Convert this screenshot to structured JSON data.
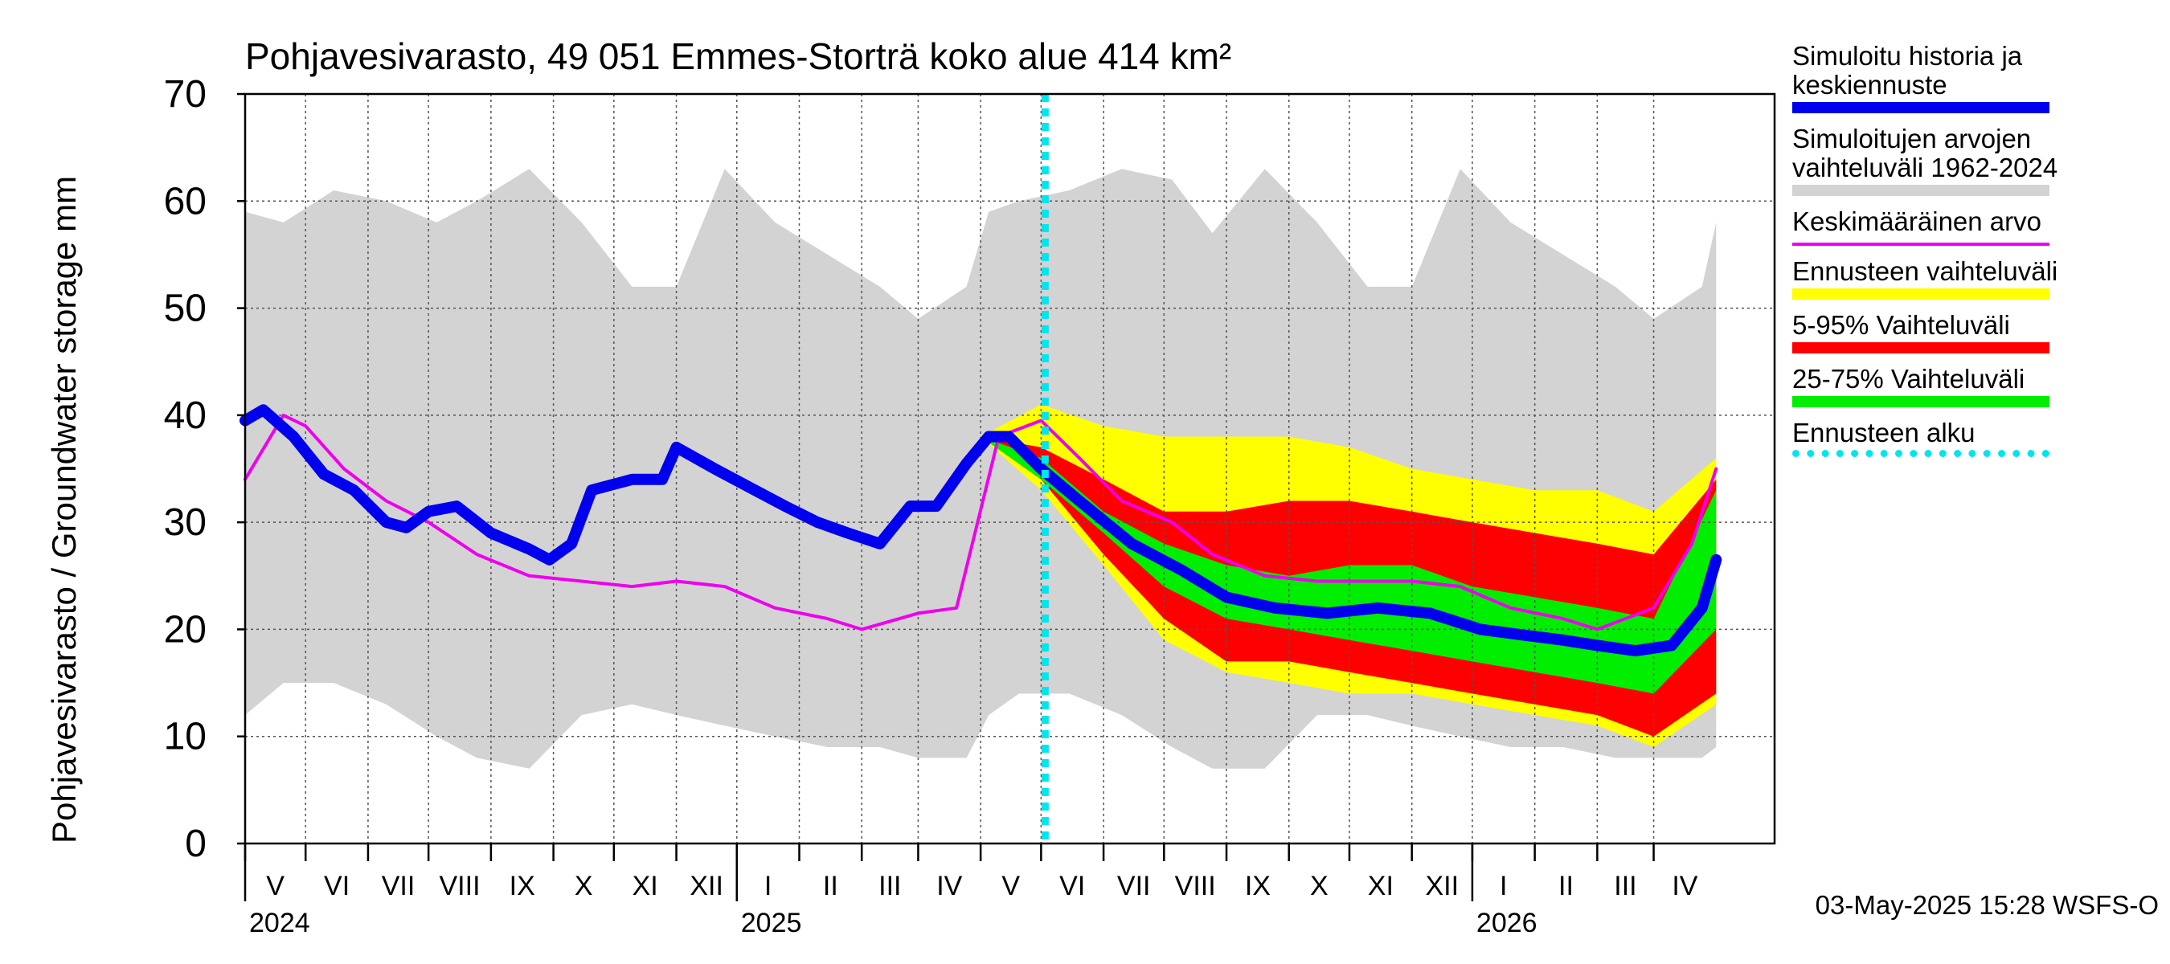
{
  "title": "Pohjavesivarasto, 49 051 Emmes-Storträ koko alue 414 km²",
  "ylabel": "Pohjavesivarasto / Groundwater storage   mm",
  "footer": "03-May-2025 15:28 WSFS-O",
  "legend": [
    {
      "label": "Simuloitu historia ja keskiennuste",
      "color": "#0000ee",
      "style": "solid"
    },
    {
      "label": "Simuloitujen arvojen vaihteluväli 1962-2024",
      "color": "#d3d3d3",
      "style": "solid"
    },
    {
      "label": "Keskimääräinen arvo",
      "color": "#ee00ee",
      "style": "line"
    },
    {
      "label": "Ennusteen vaihteluväli",
      "color": "#ffff00",
      "style": "solid"
    },
    {
      "label": "5-95% Vaihteluväli",
      "color": "#ff0000",
      "style": "solid"
    },
    {
      "label": "25-75% Vaihteluväli",
      "color": "#00ee00",
      "style": "solid"
    },
    {
      "label": "Ennusteen alku",
      "color": "#00e5ee",
      "style": "dash"
    }
  ],
  "chart_data": {
    "type": "area",
    "title": "Pohjavesivarasto, 49 051 Emmes-Storträ koko alue 414 km²",
    "ylabel": "Pohjavesivarasto / Groundwater storage   mm",
    "ylim": [
      0,
      70
    ],
    "yticks": [
      0,
      10,
      20,
      30,
      40,
      50,
      60,
      70
    ],
    "x_range": [
      "2024-04-01",
      "2026-04-30"
    ],
    "forecast_start": "2025-05-03",
    "grid": true,
    "months": [
      {
        "label": "V",
        "start": "2024-04-01"
      },
      {
        "label": "VI",
        "start": "2024-05-01"
      },
      {
        "label": "VII",
        "start": "2024-06-01"
      },
      {
        "label": "VIII",
        "start": "2024-07-01"
      },
      {
        "label": "IX",
        "start": "2024-08-01"
      },
      {
        "label": "X",
        "start": "2024-09-01"
      },
      {
        "label": "XI",
        "start": "2024-10-01"
      },
      {
        "label": "XII",
        "start": "2024-11-01"
      },
      {
        "label": "I",
        "start": "2024-12-01"
      },
      {
        "label": "II",
        "start": "2025-01-01"
      },
      {
        "label": "III",
        "start": "2025-02-01"
      },
      {
        "label": "IV",
        "start": "2025-03-01"
      },
      {
        "label": "V",
        "start": "2025-04-01"
      },
      {
        "label": "VI",
        "start": "2025-05-01"
      },
      {
        "label": "VII",
        "start": "2025-06-01"
      },
      {
        "label": "VIII",
        "start": "2025-07-01"
      },
      {
        "label": "IX",
        "start": "2025-08-01"
      },
      {
        "label": "X",
        "start": "2025-09-01"
      },
      {
        "label": "XI",
        "start": "2025-10-01"
      },
      {
        "label": "XII",
        "start": "2025-11-01"
      },
      {
        "label": "I",
        "start": "2025-12-01"
      },
      {
        "label": "II",
        "start": "2026-01-01"
      },
      {
        "label": "III",
        "start": "2026-02-01"
      },
      {
        "label": "IV",
        "start": "2026-03-01"
      }
    ],
    "years": [
      {
        "label": "2024",
        "date": "2024-04-01"
      },
      {
        "label": "2025",
        "date": "2024-12-01"
      },
      {
        "label": "2026",
        "date": "2025-12-01"
      }
    ],
    "x_end": "2026-04-01",
    "series": [
      {
        "name": "Simuloitujen arvojen vaihteluväli 1962-2024",
        "kind": "band",
        "color": "#d3d3d3",
        "x": [
          "2024-04-01",
          "2024-04-20",
          "2024-05-15",
          "2024-06-10",
          "2024-07-05",
          "2024-07-25",
          "2024-08-20",
          "2024-09-15",
          "2024-10-10",
          "2024-11-01",
          "2024-11-25",
          "2024-12-20",
          "2025-01-15",
          "2025-02-10",
          "2025-03-01",
          "2025-03-25",
          "2025-04-05",
          "2025-04-20",
          "2025-05-15",
          "2025-06-10",
          "2025-07-05",
          "2025-07-25",
          "2025-08-20",
          "2025-09-15",
          "2025-10-10",
          "2025-11-01",
          "2025-11-25",
          "2025-12-20",
          "2026-01-15",
          "2026-02-10",
          "2026-03-01",
          "2026-03-25",
          "2026-04-01"
        ],
        "high": [
          59,
          58,
          61,
          60,
          58,
          60,
          63,
          58,
          52,
          52,
          63,
          58,
          55,
          52,
          49,
          52,
          59,
          60,
          61,
          63,
          62,
          57,
          63,
          58,
          52,
          52,
          63,
          58,
          55,
          52,
          49,
          52,
          58
        ],
        "low": [
          12,
          15,
          15,
          13,
          10,
          8,
          7,
          12,
          13,
          12,
          11,
          10,
          9,
          9,
          8,
          8,
          12,
          14,
          14,
          12,
          9,
          7,
          7,
          12,
          12,
          11,
          10,
          9,
          9,
          8,
          8,
          8,
          9
        ]
      },
      {
        "name": "Ennusteen vaihteluväli",
        "kind": "band",
        "color": "#ffff00",
        "x": [
          "2025-04-01",
          "2025-05-01",
          "2025-06-01",
          "2025-07-01",
          "2025-08-01",
          "2025-09-01",
          "2025-10-01",
          "2025-11-01",
          "2025-12-01",
          "2026-01-01",
          "2026-02-01",
          "2026-03-01",
          "2026-04-01"
        ],
        "high": [
          38,
          41,
          39,
          38,
          38,
          38,
          37,
          35,
          34,
          33,
          33,
          31,
          36
        ],
        "low": [
          38,
          33,
          26,
          19,
          16,
          15,
          14,
          14,
          13,
          12,
          11,
          9,
          13
        ]
      },
      {
        "name": "5-95% Vaihteluväli",
        "kind": "band",
        "color": "#ff0000",
        "x": [
          "2025-04-01",
          "2025-05-01",
          "2025-06-01",
          "2025-07-01",
          "2025-08-01",
          "2025-09-01",
          "2025-10-01",
          "2025-11-01",
          "2025-12-01",
          "2026-01-01",
          "2026-02-01",
          "2026-03-01",
          "2026-04-01"
        ],
        "high": [
          38,
          37,
          34,
          31,
          31,
          32,
          32,
          31,
          30,
          29,
          28,
          27,
          34
        ],
        "low": [
          38,
          34,
          27,
          21,
          17,
          17,
          16,
          15,
          14,
          13,
          12,
          10,
          14
        ]
      },
      {
        "name": "25-75% Vaihteluväli",
        "kind": "band",
        "color": "#00ee00",
        "x": [
          "2025-04-01",
          "2025-05-01",
          "2025-06-01",
          "2025-07-01",
          "2025-08-01",
          "2025-09-01",
          "2025-10-01",
          "2025-11-01",
          "2025-12-01",
          "2026-01-01",
          "2026-02-01",
          "2026-03-01",
          "2026-04-01"
        ],
        "high": [
          38,
          36,
          31,
          28,
          26,
          25,
          26,
          26,
          24,
          23,
          22,
          21,
          33
        ],
        "low": [
          38,
          34,
          29,
          24,
          21,
          20,
          19,
          18,
          17,
          16,
          15,
          14,
          20
        ]
      },
      {
        "name": "Keskimääräinen arvo",
        "kind": "line",
        "color": "#ee00ee",
        "x": [
          "2024-04-01",
          "2024-04-20",
          "2024-05-01",
          "2024-05-20",
          "2024-06-10",
          "2024-07-01",
          "2024-07-25",
          "2024-08-20",
          "2024-09-15",
          "2024-10-10",
          "2024-11-01",
          "2024-11-25",
          "2024-12-20",
          "2025-01-15",
          "2025-02-01",
          "2025-03-01",
          "2025-03-20",
          "2025-04-10",
          "2025-05-01",
          "2025-05-20",
          "2025-06-10",
          "2025-07-05",
          "2025-07-25",
          "2025-08-20",
          "2025-09-15",
          "2025-10-10",
          "2025-11-01",
          "2025-11-25",
          "2025-12-20",
          "2026-01-15",
          "2026-02-01",
          "2026-03-01",
          "2026-03-20",
          "2026-04-01"
        ],
        "values": [
          34,
          40,
          39,
          35,
          32,
          30,
          27,
          25,
          24.5,
          24,
          24.5,
          24,
          22,
          21,
          20,
          21.5,
          22,
          38,
          39.5,
          36,
          32,
          30,
          27,
          25,
          24.5,
          24.5,
          24.5,
          24,
          22,
          21,
          20,
          22,
          28,
          35
        ]
      },
      {
        "name": "Simuloitu historia ja keskiennuste",
        "kind": "line",
        "color": "#0000ee",
        "x": [
          "2024-04-01",
          "2024-04-10",
          "2024-04-25",
          "2024-05-10",
          "2024-05-25",
          "2024-06-10",
          "2024-06-20",
          "2024-07-01",
          "2024-07-15",
          "2024-08-01",
          "2024-08-20",
          "2024-08-30",
          "2024-09-10",
          "2024-09-20",
          "2024-10-10",
          "2024-10-25",
          "2024-11-01",
          "2024-11-20",
          "2024-12-10",
          "2024-12-25",
          "2025-01-10",
          "2025-01-25",
          "2025-02-10",
          "2025-02-25",
          "2025-03-10",
          "2025-03-25",
          "2025-04-05",
          "2025-04-15",
          "2025-05-01",
          "2025-05-20",
          "2025-06-15",
          "2025-07-10",
          "2025-08-01",
          "2025-08-25",
          "2025-09-20",
          "2025-10-15",
          "2025-11-10",
          "2025-12-05",
          "2025-12-25",
          "2026-01-15",
          "2026-02-01",
          "2026-02-20",
          "2026-03-10",
          "2026-03-25",
          "2026-04-01"
        ],
        "values": [
          39.5,
          40.5,
          38,
          34.5,
          33,
          30,
          29.5,
          31,
          31.5,
          29,
          27.5,
          26.5,
          28,
          33,
          34,
          34,
          37,
          35,
          33,
          31.5,
          30,
          29,
          28,
          31.5,
          31.5,
          35.5,
          38,
          38,
          35,
          32,
          28,
          25.5,
          23,
          22,
          21.5,
          22,
          21.5,
          20,
          19.5,
          19,
          18.5,
          18,
          18.5,
          22,
          26.5
        ]
      }
    ]
  }
}
